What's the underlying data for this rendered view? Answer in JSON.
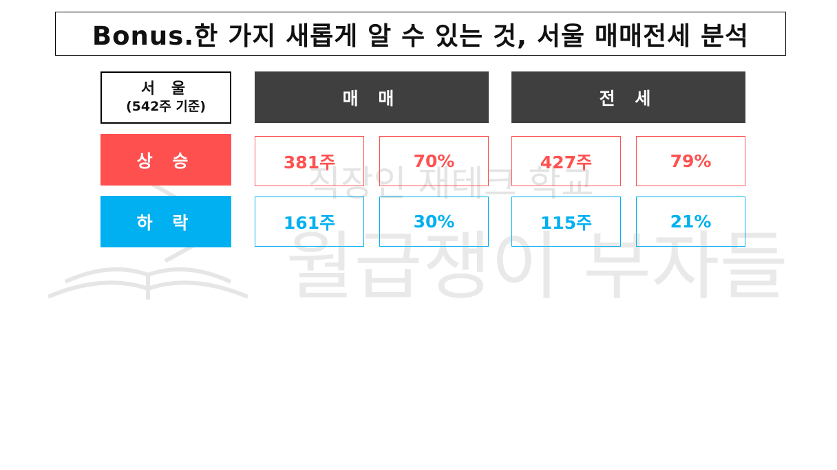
{
  "title": "Bonus.한 가지 새롭게 알 수 있는 것, 서울 매매전세 분석",
  "table": {
    "corner_line1": "서 울",
    "corner_line2": "(542주 기준)",
    "col_maemae": "매 매",
    "col_jeonse": "전 세",
    "row_up": {
      "label": "상 승",
      "maemae_count": "381주",
      "maemae_pct": "70%",
      "jeonse_count": "427주",
      "jeonse_pct": "79%"
    },
    "row_down": {
      "label": "하 락",
      "maemae_count": "161주",
      "maemae_pct": "30%",
      "jeonse_count": "115주",
      "jeonse_pct": "21%"
    }
  },
  "watermark": {
    "line1": "직장인 재테크 학교",
    "line2": "월급쟁이 부자들",
    "icon": "open-book-icon"
  },
  "colors": {
    "up": "#ff5050",
    "down": "#00b0f0",
    "header": "#3f3f3f"
  }
}
